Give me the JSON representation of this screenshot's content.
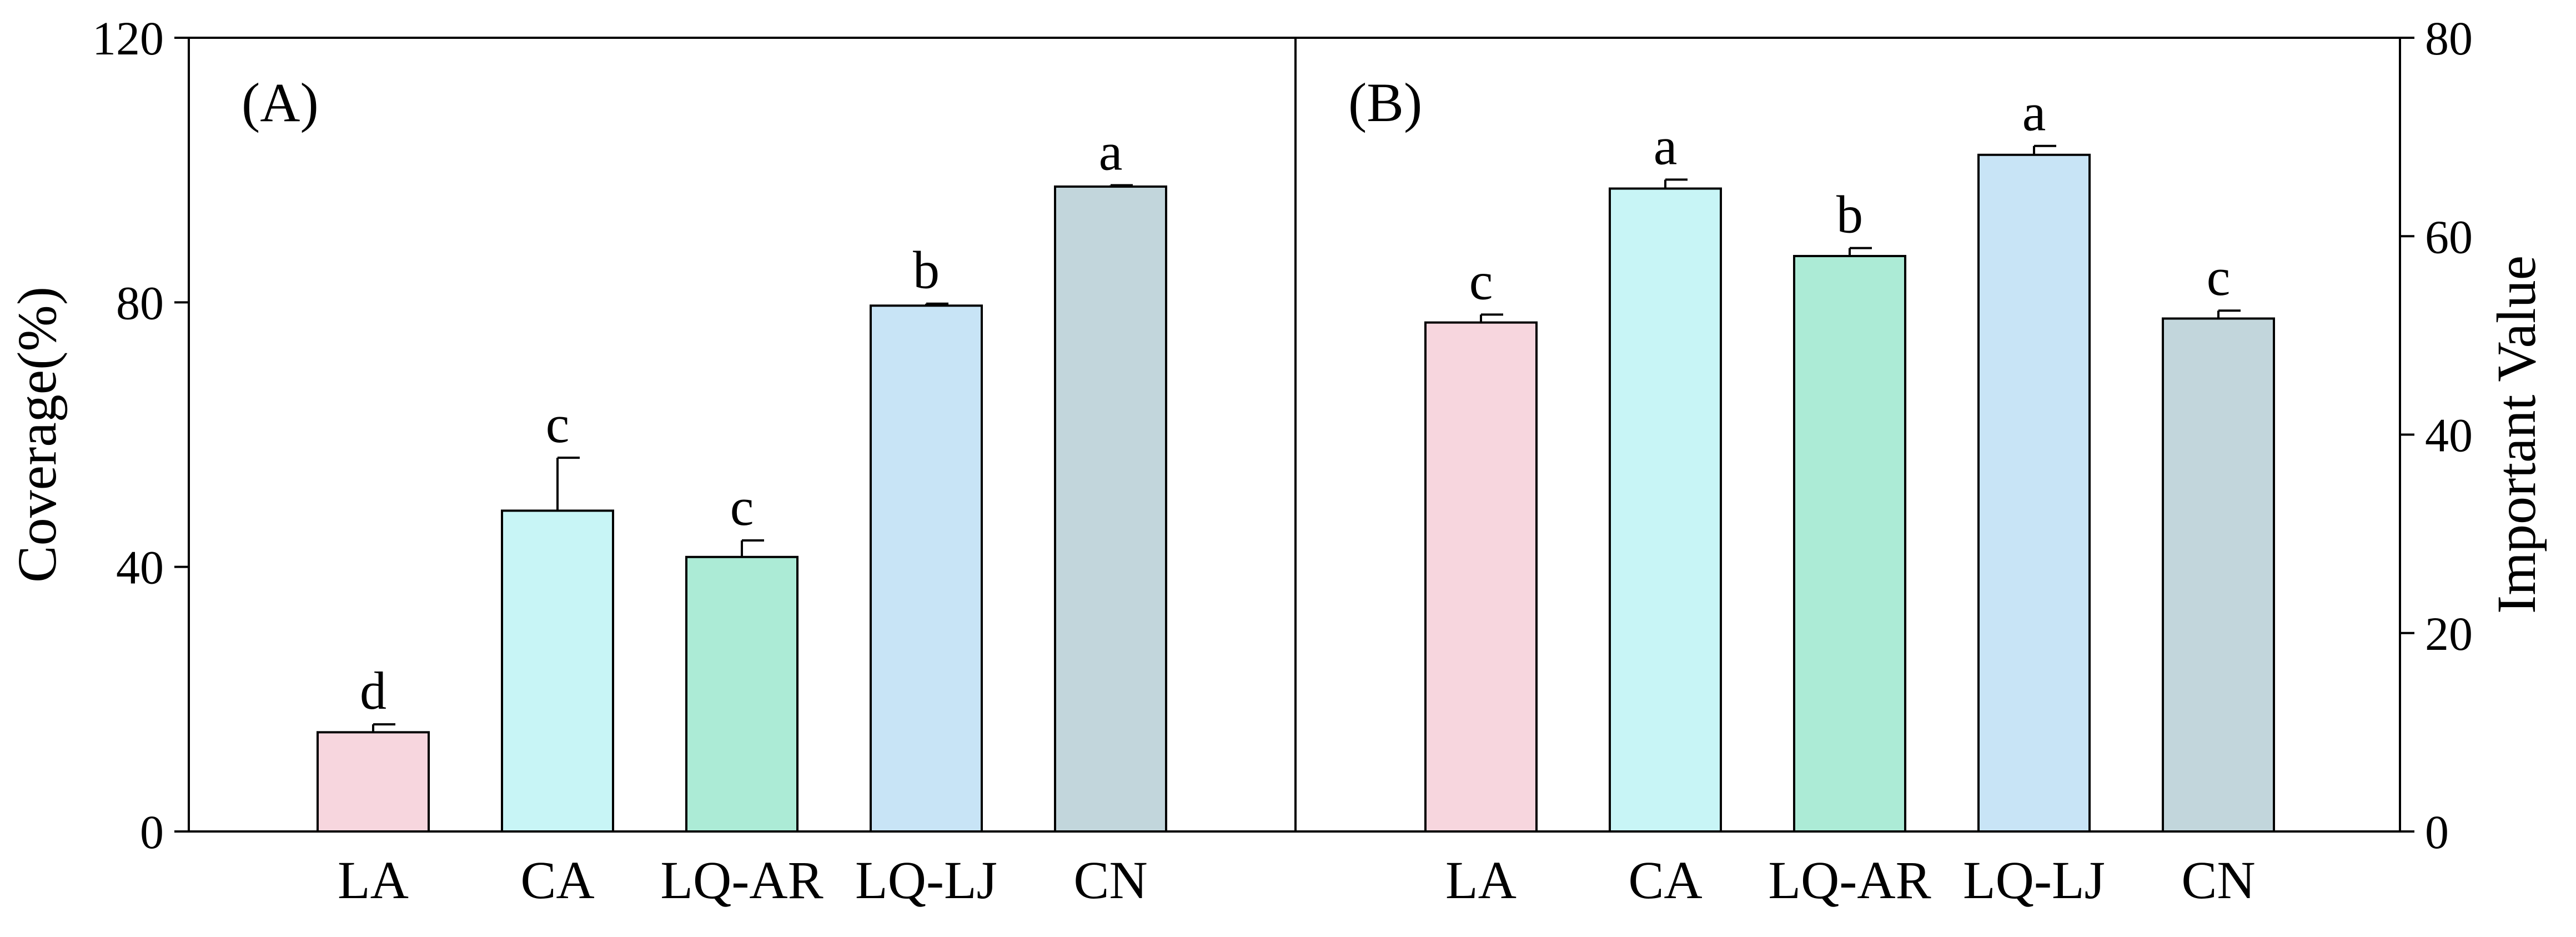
{
  "chart_data": [
    {
      "type": "bar",
      "panel_label": "(A)",
      "categories": [
        "LA",
        "CA",
        "LQ-AR",
        "LQ-LJ",
        "CN"
      ],
      "values": [
        15,
        48.5,
        41.5,
        79.5,
        97.5
      ],
      "errors": [
        1.2,
        8.0,
        2.5,
        0.3,
        0.2
      ],
      "significance": [
        "d",
        "c",
        "c",
        "b",
        "a"
      ],
      "colors": [
        "#f7d6de",
        "#c8f5f6",
        "#acebd6",
        "#c8e4f6",
        "#c2d6dc"
      ],
      "ylabel": "Coverage(%)",
      "xlabel": "",
      "ylim": [
        0,
        120
      ],
      "yticks": [
        "0",
        "40",
        "80",
        "120"
      ],
      "y_axis_side": "left",
      "grid": false
    },
    {
      "type": "bar",
      "panel_label": "(B)",
      "categories": [
        "LA",
        "CA",
        "LQ-AR",
        "LQ-LJ",
        "CN"
      ],
      "values": [
        51.3,
        64.8,
        58.0,
        68.2,
        51.7
      ],
      "errors": [
        0.8,
        0.9,
        0.8,
        0.9,
        0.8
      ],
      "significance": [
        "c",
        "a",
        "b",
        "a",
        "c"
      ],
      "colors": [
        "#f7d6de",
        "#c8f5f6",
        "#acebd6",
        "#c8e4f6",
        "#c2d6dc"
      ],
      "ylabel": "Important  Value",
      "xlabel": "",
      "ylim": [
        0,
        80
      ],
      "yticks": [
        "0",
        "20",
        "40",
        "60",
        "80"
      ],
      "y_axis_side": "right",
      "grid": false
    }
  ]
}
